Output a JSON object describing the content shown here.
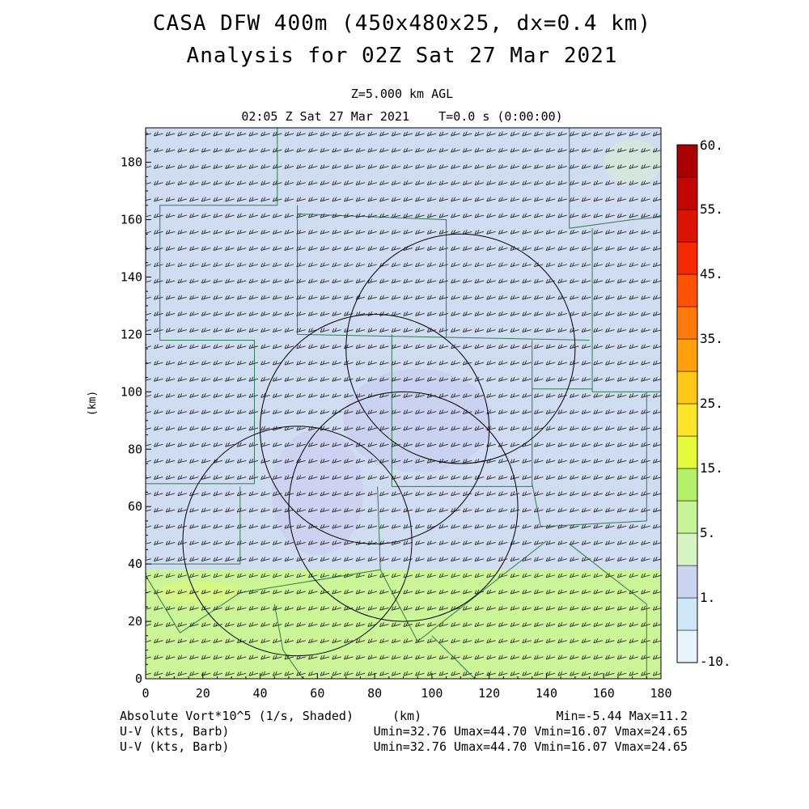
{
  "header": {
    "title": "CASA DFW 400m (450x480x25, dx=0.4 km)",
    "subtitle": "Analysis for 02Z Sat 27 Mar 2021",
    "level": "Z=5.000 km AGL",
    "valid_time": "02:05 Z Sat 27 Mar 2021    T=0.0 s (0:00:00)"
  },
  "footer": {
    "field_label": "Absolute Vort*10^5 (1/s, Shaded)",
    "x_unit": "(km)",
    "field_range": "Min=-5.44 Max=11.2",
    "vector1_label": "U-V (kts, Barb)",
    "vector1_range": "Umin=32.76 Umax=44.70 Vmin=16.07 Vmax=24.65",
    "vector2_label": "U-V (kts, Barb)",
    "vector2_range": "Umin=32.76 Umax=44.70 Vmin=16.07 Vmax=24.65"
  },
  "chart_data": {
    "type": "heatmap",
    "xlabel": "(km)",
    "ylabel": "(km)",
    "xlim": [
      0,
      180
    ],
    "ylim": [
      0,
      192
    ],
    "xticks": [
      0,
      20,
      40,
      60,
      80,
      100,
      120,
      140,
      160,
      180
    ],
    "yticks": [
      0,
      20,
      40,
      60,
      80,
      100,
      120,
      140,
      160,
      180
    ],
    "field": "Absolute Vort*10^5 (1/s, Shaded)",
    "field_min": -5.44,
    "field_max": 11.2,
    "colorbar": {
      "levels": [
        "-10.",
        "",
        "1.",
        "",
        "5.",
        "",
        "15.",
        "",
        "25.",
        "",
        "35.",
        "",
        "45.",
        "",
        "55.",
        "60."
      ],
      "colors": [
        "#e6f5fc",
        "#cfe8f8",
        "#cbd5f2",
        "#d6f5c2",
        "#c6f29a",
        "#b4ef6a",
        "#e4f93a",
        "#ffe52a",
        "#ffc818",
        "#ffa00c",
        "#ff7a08",
        "#ff5204",
        "#f62a02",
        "#dc1402",
        "#c40600",
        "#aa0000"
      ]
    },
    "shaded_regions": [
      {
        "label": "1.",
        "y_range": [
          38,
          192
        ],
        "color": "#cfdcf2"
      },
      {
        "label": "5.",
        "y_range": [
          0,
          38
        ],
        "color": "#cbf596"
      }
    ],
    "radar_range_rings": [
      {
        "center": [
          110,
          115
        ],
        "radius": 40
      },
      {
        "center": [
          80,
          87
        ],
        "radius": 40
      },
      {
        "center": [
          90,
          60
        ],
        "radius": 40
      },
      {
        "center": [
          53,
          48
        ],
        "radius": 40
      }
    ],
    "wind_barbs": {
      "u_range": [
        32.76,
        44.7
      ],
      "v_range": [
        16.07,
        24.65
      ],
      "units": "kts"
    }
  }
}
